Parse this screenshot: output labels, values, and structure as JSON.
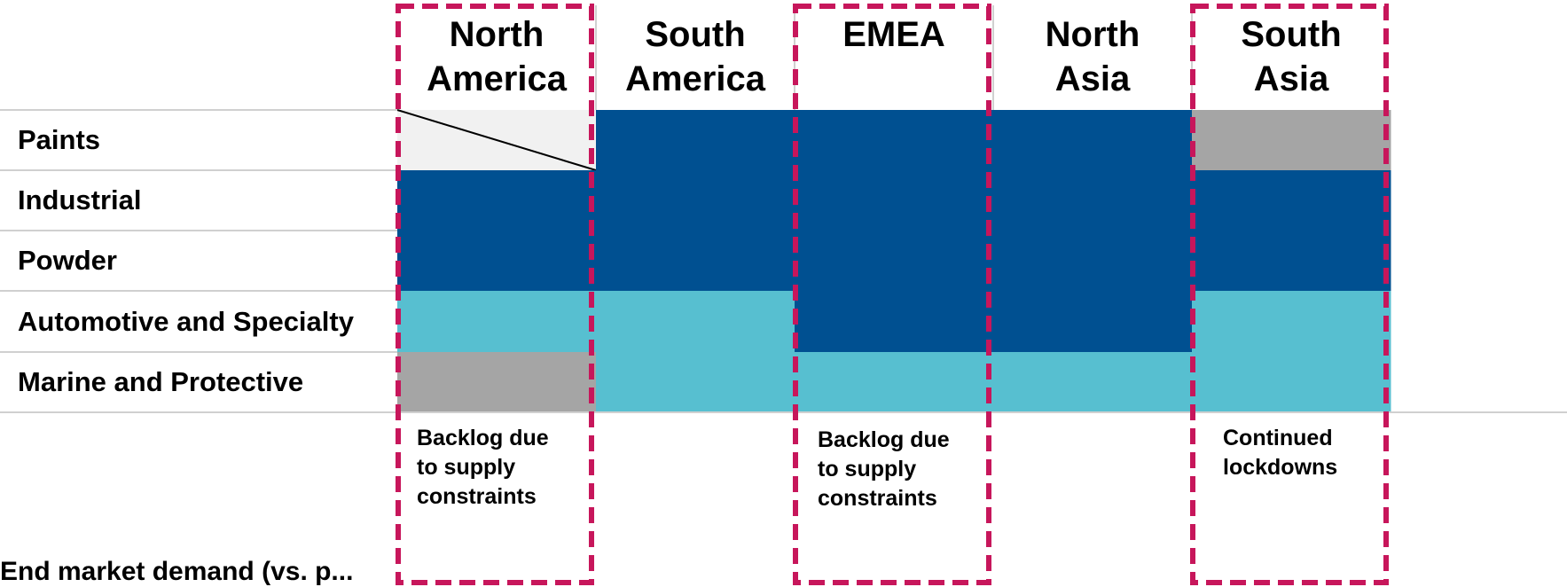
{
  "regions": [
    {
      "name": "North\nAmerica"
    },
    {
      "name": "South\nAmerica"
    },
    {
      "name": "EMEA"
    },
    {
      "name": "North\nAsia"
    },
    {
      "name": "South\nAsia"
    }
  ],
  "segments": [
    "Paints",
    "Industrial",
    "Powder",
    "Automotive and Specialty",
    "Marine and Protective"
  ],
  "colors": {
    "dark_blue": "#005091",
    "light_blue": "#57BFD0",
    "gray": "#A5A5A5",
    "not_applicable": "#F1F1F1",
    "highlight": "#C7165B",
    "divider": "#D0D0D0"
  },
  "cells": [
    [
      "not_applicable",
      "dark_blue",
      "dark_blue",
      "dark_blue",
      "gray"
    ],
    [
      "dark_blue",
      "dark_blue",
      "dark_blue",
      "dark_blue",
      "dark_blue"
    ],
    [
      "dark_blue",
      "dark_blue",
      "dark_blue",
      "dark_blue",
      "dark_blue"
    ],
    [
      "light_blue",
      "light_blue",
      "dark_blue",
      "dark_blue",
      "light_blue"
    ],
    [
      "gray",
      "light_blue",
      "light_blue",
      "light_blue",
      "light_blue"
    ]
  ],
  "highlights": [
    {
      "region": "North\nAmerica",
      "note": "Backlog due\nto supply\nconstraints"
    },
    {
      "region": "EMEA",
      "note": "Backlog due\nto supply\nconstraints"
    },
    {
      "region": "South\nAsia",
      "note": "Continued\nlockdowns"
    }
  ],
  "footnote": "End market demand (vs. p..."
}
